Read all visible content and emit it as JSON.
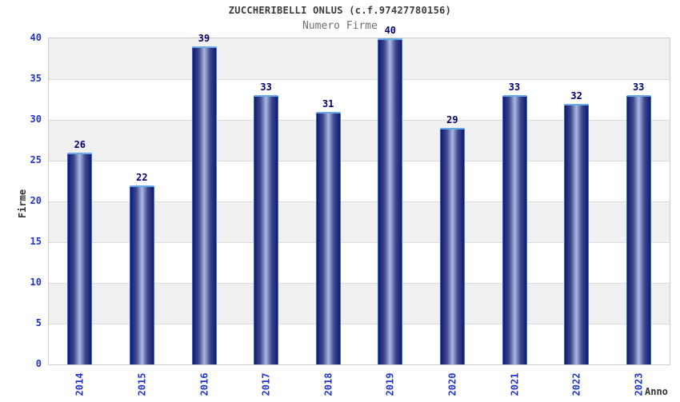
{
  "chart_data": {
    "type": "bar",
    "title": "ZUCCHERIBELLI ONLUS (c.f.97427780156)",
    "subtitle": "Numero Firme",
    "categories": [
      "2014",
      "2015",
      "2016",
      "2017",
      "2018",
      "2019",
      "2020",
      "2021",
      "2022",
      "2023"
    ],
    "values": [
      26,
      22,
      39,
      33,
      31,
      40,
      29,
      33,
      32,
      33
    ],
    "xlabel": "Anno",
    "ylabel": "Firme",
    "ylim": [
      0,
      40
    ],
    "ytick_step": 5,
    "ytick_labels": [
      "0",
      "5",
      "10",
      "15",
      "20",
      "25",
      "30",
      "35",
      "40"
    ],
    "bar_value_labels": [
      "26",
      "22",
      "39",
      "33",
      "31",
      "40",
      "29",
      "33",
      "32",
      "33"
    ],
    "grid": "alternating-horizontal-bands",
    "legend": "none",
    "x_tick_rotation_deg": 90
  },
  "colors": {
    "bar_dark": "#141b6b",
    "bar_mid": "#3e488f",
    "bar_light": "#aeb8e2",
    "bar_border": "#2f6fe0",
    "bar_border_top": "#6aaae8",
    "tick_label": "#2233cc",
    "value_label": "#000070",
    "band": "#f0f0f0",
    "grid_line": "#dcdcdc",
    "axis_line": "#cccccc",
    "title_color": "#3a3a3a",
    "subtitle_color": "#707070",
    "axis_title_color": "#333333"
  }
}
